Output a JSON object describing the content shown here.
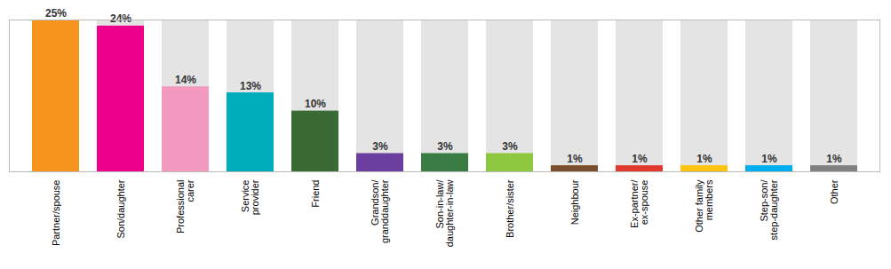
{
  "chart_data": {
    "type": "bar",
    "categories": [
      "Partner/spouse",
      "Son/daughter",
      "Professional\ncarer",
      "Service\nprovider",
      "Friend",
      "Grandson/\ngranddaughter",
      "Son-in-law/\ndaughter-in-law",
      "Brother/sister",
      "Neighbour",
      "Ex-partner/\nex-spouse",
      "Other family\nmembers",
      "Step-son/\nstep-daughter",
      "Other"
    ],
    "values": [
      25,
      24,
      14,
      13,
      10,
      3,
      3,
      3,
      1,
      1,
      1,
      1,
      1
    ],
    "value_labels": [
      "25%",
      "24%",
      "14%",
      "13%",
      "10%",
      "3%",
      "3%",
      "3%",
      "1%",
      "1%",
      "1%",
      "1%",
      "1%"
    ],
    "colors": [
      "#F7941D",
      "#EC008C",
      "#F49AC1",
      "#00AEBB",
      "#3A6B35",
      "#6B3FA0",
      "#3A7D44",
      "#8DC63F",
      "#7B4F2E",
      "#E03A2E",
      "#FFC20E",
      "#00AEEF",
      "#808080"
    ],
    "ylim": [
      0,
      25
    ],
    "data_labels": true,
    "tick_labels": "x"
  }
}
